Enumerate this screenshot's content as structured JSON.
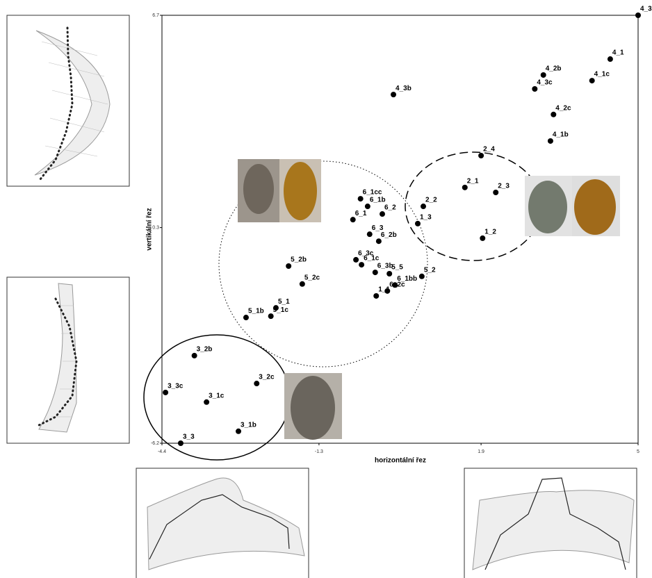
{
  "chart_data": {
    "type": "scatter",
    "xlabel": "horizontální řez",
    "ylabel": "vertikální řez",
    "color": "#000000",
    "xlim": [
      -4.4,
      5.0
    ],
    "ylim": [
      -6.2,
      6.7
    ],
    "xticks": [
      -4.4,
      -1.3,
      1.9,
      5.0
    ],
    "yticks": [
      -6.2,
      0.3,
      6.7
    ],
    "points": [
      {
        "label": "4_3",
        "x": 5.0,
        "y": 6.7
      },
      {
        "label": "4_1",
        "x": 4.45,
        "y": 5.38
      },
      {
        "label": "4_2b",
        "x": 3.13,
        "y": 4.9
      },
      {
        "label": "4_1c",
        "x": 4.09,
        "y": 4.73
      },
      {
        "label": "4_3c",
        "x": 2.96,
        "y": 4.48
      },
      {
        "label": "4_3b",
        "x": 0.17,
        "y": 4.31
      },
      {
        "label": "4_2c",
        "x": 3.33,
        "y": 3.71
      },
      {
        "label": "4_1b",
        "x": 3.27,
        "y": 2.91
      },
      {
        "label": "2_4",
        "x": 1.9,
        "y": 2.47
      },
      {
        "label": "2_1",
        "x": 1.58,
        "y": 1.51
      },
      {
        "label": "2_3",
        "x": 2.19,
        "y": 1.36
      },
      {
        "label": "2_2",
        "x": 0.76,
        "y": 0.94
      },
      {
        "label": "6_1cc",
        "x": -0.48,
        "y": 1.17
      },
      {
        "label": "6_1b",
        "x": -0.34,
        "y": 0.94
      },
      {
        "label": "6_2",
        "x": -0.05,
        "y": 0.71
      },
      {
        "label": "6_1",
        "x": -0.63,
        "y": 0.54
      },
      {
        "label": "1_3",
        "x": 0.65,
        "y": 0.42
      },
      {
        "label": "1_2",
        "x": 1.93,
        "y": -0.02
      },
      {
        "label": "6_3",
        "x": -0.3,
        "y": 0.1
      },
      {
        "label": "6_2b",
        "x": -0.12,
        "y": -0.11
      },
      {
        "label": "5_2b",
        "x": -1.9,
        "y": -0.86
      },
      {
        "label": "6_3c",
        "x": -0.57,
        "y": -0.67
      },
      {
        "label": "6_1c",
        "x": -0.46,
        "y": -0.82
      },
      {
        "label": "6_3b",
        "x": -0.19,
        "y": -1.05
      },
      {
        "label": "5_5",
        "x": 0.09,
        "y": -1.09
      },
      {
        "label": "5_2",
        "x": 0.73,
        "y": -1.17
      },
      {
        "label": "6_1bb",
        "x": 0.2,
        "y": -1.43
      },
      {
        "label": "5_2c",
        "x": -1.63,
        "y": -1.4
      },
      {
        "label": "6_2c",
        "x": 0.05,
        "y": -1.61
      },
      {
        "label": "1_1",
        "x": -0.17,
        "y": -1.76
      },
      {
        "label": "5_1",
        "x": -2.15,
        "y": -2.12
      },
      {
        "label": "5_1c",
        "x": -2.25,
        "y": -2.37
      },
      {
        "label": "5_1b",
        "x": -2.74,
        "y": -2.41
      },
      {
        "label": "3_2b",
        "x": -3.76,
        "y": -3.56
      },
      {
        "label": "3_2c",
        "x": -2.53,
        "y": -4.4
      },
      {
        "label": "3_3c",
        "x": -4.33,
        "y": -4.67
      },
      {
        "label": "3_1c",
        "x": -3.52,
        "y": -4.96
      },
      {
        "label": "3_1b",
        "x": -2.89,
        "y": -5.84
      },
      {
        "label": "3_3",
        "x": -4.03,
        "y": -6.2
      }
    ]
  }
}
